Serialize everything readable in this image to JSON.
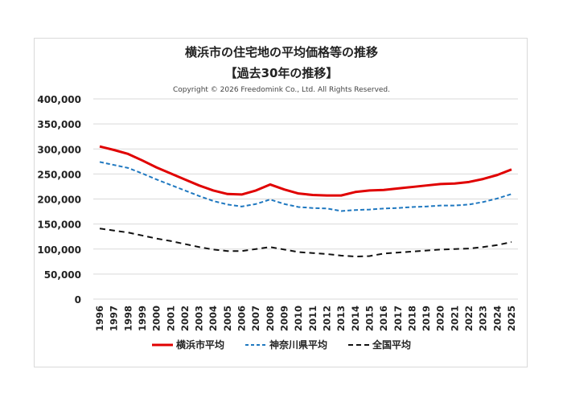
{
  "chart_data": {
    "type": "line",
    "title": "横浜市の住宅地の平均価格等の推移",
    "subtitle": "【過去30年の推移】",
    "copyright": "Copyright © 2026 Freedomink Co., Ltd. All Rights Reserved.",
    "x": [
      "1996",
      "1997",
      "1998",
      "1999",
      "2000",
      "2001",
      "2002",
      "2003",
      "2004",
      "2005",
      "2006",
      "2007",
      "2008",
      "2009",
      "2010",
      "2011",
      "2012",
      "2013",
      "2014",
      "2015",
      "2016",
      "2017",
      "2018",
      "2019",
      "2020",
      "2021",
      "2022",
      "2023",
      "2024",
      "2025"
    ],
    "ylim": [
      0,
      400000
    ],
    "yticks": [
      "0",
      "50,000",
      "100,000",
      "150,000",
      "200,000",
      "250,000",
      "300,000",
      "350,000",
      "400,000"
    ],
    "grid": true,
    "legend_position": "bottom",
    "series": [
      {
        "name": "横浜市平均",
        "color": "#e00000",
        "style": "solid",
        "values": [
          305000,
          298000,
          290000,
          277000,
          263000,
          251000,
          239000,
          227000,
          217000,
          210000,
          209000,
          217000,
          229000,
          219000,
          211000,
          208000,
          207000,
          207000,
          214000,
          217000,
          218000,
          221000,
          224000,
          227000,
          230000,
          231000,
          234000,
          240000,
          248000,
          259000
        ]
      },
      {
        "name": "神奈川県平均",
        "color": "#1f78c0",
        "style": "dashed",
        "values": [
          274000,
          268000,
          262000,
          251000,
          239000,
          228000,
          217000,
          206000,
          196000,
          189000,
          185000,
          190000,
          199000,
          190000,
          184000,
          182000,
          181000,
          176000,
          178000,
          179000,
          181000,
          182000,
          184000,
          185000,
          187000,
          187000,
          189000,
          194000,
          201000,
          210000
        ]
      },
      {
        "name": "全国平均",
        "color": "#111111",
        "style": "dashed",
        "values": [
          141000,
          137000,
          133000,
          127000,
          121000,
          116000,
          110000,
          104000,
          99000,
          96000,
          96000,
          100000,
          104000,
          99000,
          94000,
          92000,
          90000,
          87000,
          85000,
          86000,
          91000,
          93000,
          95000,
          97000,
          99000,
          100000,
          101000,
          104000,
          108000,
          114000
        ]
      }
    ]
  }
}
